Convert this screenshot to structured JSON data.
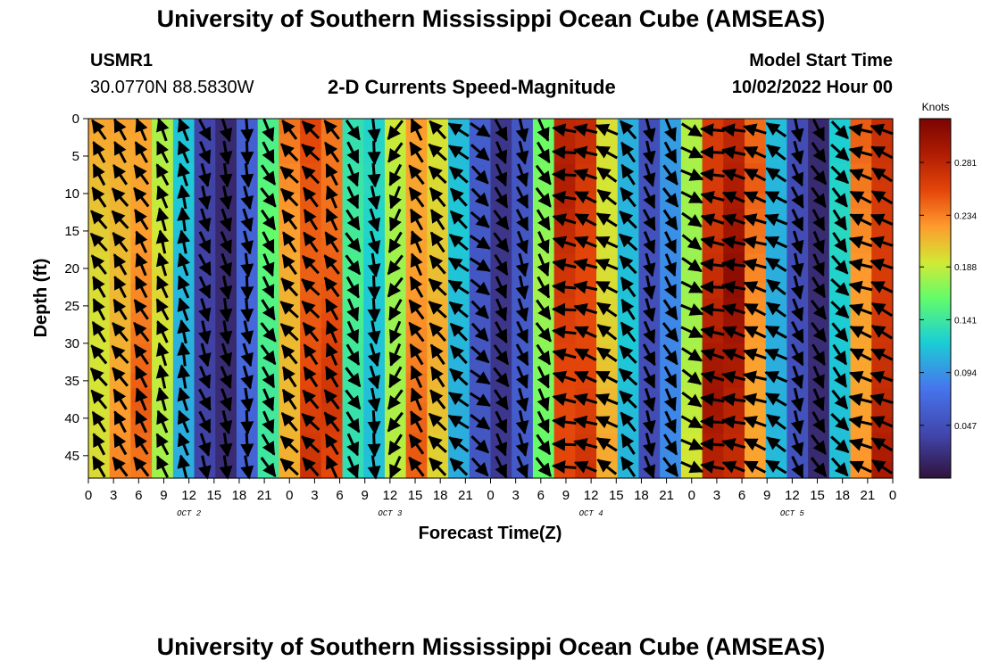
{
  "title": "University of Southern Mississippi Ocean Cube (AMSEAS)",
  "footer_title": "University of Southern Mississippi Ocean Cube (AMSEAS)",
  "station": {
    "name": "USMR1",
    "coords": "30.0770N  88.5830W"
  },
  "model": {
    "label": "Model Start Time",
    "start": "10/02/2022 Hour 00"
  },
  "chart_data": {
    "type": "heatmap",
    "title": "2-D Currents Speed-Magnitude",
    "xlabel": "Forecast Time(Z)",
    "ylabel": "Depth (ft)",
    "x_ticks": [
      "0",
      "3",
      "6",
      "9",
      "12",
      "15",
      "18",
      "21",
      "0",
      "3",
      "6",
      "9",
      "12",
      "15",
      "18",
      "21",
      "0",
      "3",
      "6",
      "9",
      "12",
      "15",
      "18",
      "21",
      "0",
      "3",
      "6",
      "9",
      "12",
      "15",
      "18",
      "21",
      "0"
    ],
    "x_range_hours": [
      0,
      96
    ],
    "day_labels": [
      {
        "label": "OCT 2",
        "hour": 12
      },
      {
        "label": "OCT 3",
        "hour": 36
      },
      {
        "label": "OCT 4",
        "hour": 60
      },
      {
        "label": "OCT 5",
        "hour": 84
      }
    ],
    "y_ticks": [
      "0",
      "5",
      "10",
      "15",
      "20",
      "25",
      "30",
      "35",
      "40",
      "45"
    ],
    "y_range_ft": [
      0,
      48
    ],
    "colorbar": {
      "units": "Knots",
      "ticks": [
        "0.047",
        "0.094",
        "0.141",
        "0.188",
        "0.234",
        "0.281"
      ],
      "range": [
        0.0,
        0.32
      ]
    },
    "speed_profile_knots": [
      0.22,
      0.24,
      0.25,
      0.2,
      0.12,
      0.04,
      0.02,
      0.07,
      0.16,
      0.24,
      0.28,
      0.27,
      0.15,
      0.13,
      0.2,
      0.25,
      0.22,
      0.12,
      0.06,
      0.03,
      0.06,
      0.18,
      0.29,
      0.29,
      0.22,
      0.12,
      0.05,
      0.1,
      0.2,
      0.3,
      0.31,
      0.25,
      0.12,
      0.05,
      0.02,
      0.13,
      0.25,
      0.3
    ],
    "arrow_direction_deg": [
      -35,
      -35,
      -30,
      -20,
      -15,
      160,
      165,
      170,
      150,
      -40,
      -40,
      -30,
      150,
      170,
      -150,
      -30,
      -40,
      -50,
      130,
      150,
      160,
      150,
      -80,
      -70,
      -60,
      -40,
      160,
      150,
      120,
      -80,
      -75,
      -70,
      -60,
      160,
      150,
      140,
      -70,
      -65
    ]
  }
}
